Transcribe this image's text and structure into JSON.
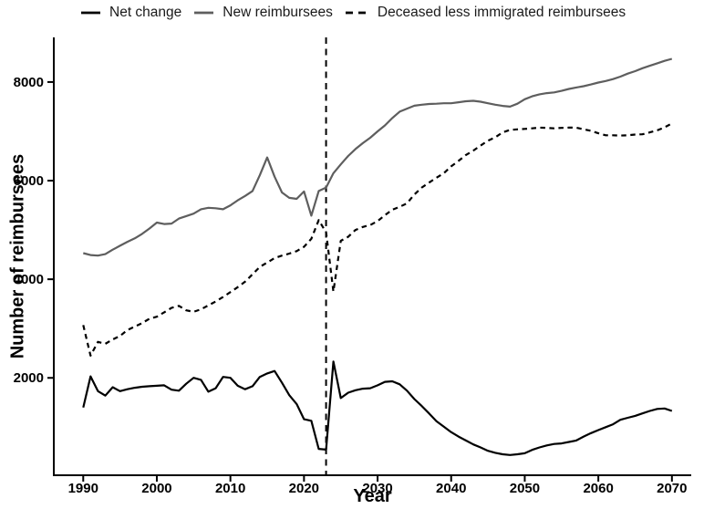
{
  "chart_data": {
    "type": "line",
    "title": "",
    "xlabel": "Year",
    "ylabel": "Number of reimbursees",
    "xlim": [
      1986,
      2072.5
    ],
    "ylim": [
      25,
      8905
    ],
    "x_ticks": [
      1990,
      2000,
      2010,
      2020,
      2030,
      2040,
      2050,
      2060,
      2070
    ],
    "y_ticks": [
      2000,
      4000,
      6000,
      8000
    ],
    "grid": false,
    "legend_position": "top",
    "reference_line": {
      "x": 2023,
      "style": "dashed",
      "color": "#000000"
    },
    "x": [
      1990,
      1991,
      1992,
      1993,
      1994,
      1995,
      1996,
      1997,
      1998,
      1999,
      2000,
      2001,
      2002,
      2003,
      2004,
      2005,
      2006,
      2007,
      2008,
      2009,
      2010,
      2011,
      2012,
      2013,
      2014,
      2015,
      2016,
      2017,
      2018,
      2019,
      2020,
      2021,
      2022,
      2023,
      2024,
      2025,
      2026,
      2027,
      2028,
      2029,
      2030,
      2031,
      2032,
      2033,
      2034,
      2035,
      2036,
      2037,
      2038,
      2039,
      2040,
      2041,
      2042,
      2043,
      2044,
      2045,
      2046,
      2047,
      2048,
      2049,
      2050,
      2051,
      2052,
      2053,
      2054,
      2055,
      2056,
      2057,
      2058,
      2059,
      2060,
      2061,
      2062,
      2063,
      2064,
      2065,
      2066,
      2067,
      2068,
      2069,
      2070
    ],
    "series": [
      {
        "name": "Net change",
        "color": "#000000",
        "line_style": "solid",
        "values": [
          1400,
          2030,
          1730,
          1640,
          1810,
          1730,
          1770,
          1800,
          1820,
          1830,
          1840,
          1850,
          1760,
          1740,
          1880,
          2000,
          1960,
          1720,
          1790,
          2020,
          2000,
          1840,
          1770,
          1830,
          2020,
          2090,
          2140,
          1900,
          1650,
          1470,
          1160,
          1130,
          560,
          545,
          2330,
          1590,
          1700,
          1750,
          1780,
          1790,
          1850,
          1920,
          1930,
          1870,
          1740,
          1570,
          1430,
          1280,
          1120,
          1010,
          900,
          810,
          730,
          650,
          590,
          520,
          480,
          450,
          435,
          450,
          470,
          540,
          590,
          630,
          660,
          670,
          700,
          730,
          810,
          880,
          940,
          1000,
          1060,
          1150,
          1190,
          1230,
          1280,
          1330,
          1370,
          1380,
          1330
        ]
      },
      {
        "name": "New reimbursees",
        "color": "#5e5e5e",
        "line_style": "solid",
        "values": [
          4530,
          4490,
          4480,
          4510,
          4600,
          4680,
          4760,
          4830,
          4920,
          5030,
          5150,
          5120,
          5130,
          5230,
          5280,
          5330,
          5420,
          5450,
          5440,
          5420,
          5500,
          5600,
          5690,
          5790,
          6110,
          6470,
          6080,
          5760,
          5650,
          5630,
          5780,
          5290,
          5790,
          5860,
          6150,
          6330,
          6500,
          6640,
          6760,
          6870,
          7000,
          7120,
          7270,
          7400,
          7460,
          7520,
          7540,
          7555,
          7560,
          7570,
          7570,
          7590,
          7610,
          7620,
          7600,
          7570,
          7540,
          7515,
          7500,
          7560,
          7650,
          7710,
          7750,
          7775,
          7790,
          7820,
          7860,
          7890,
          7915,
          7950,
          7990,
          8020,
          8060,
          8110,
          8170,
          8220,
          8280,
          8330,
          8380,
          8430,
          8470
        ]
      },
      {
        "name": "Deceased less immigrated reimbursees",
        "color": "#000000",
        "line_style": "dashed",
        "values": [
          3070,
          2450,
          2730,
          2690,
          2780,
          2850,
          2970,
          3040,
          3110,
          3200,
          3240,
          3330,
          3420,
          3460,
          3370,
          3340,
          3390,
          3470,
          3550,
          3640,
          3740,
          3840,
          3950,
          4100,
          4250,
          4340,
          4430,
          4480,
          4520,
          4570,
          4660,
          4820,
          5200,
          4950,
          3750,
          4780,
          4860,
          5000,
          5060,
          5100,
          5180,
          5300,
          5410,
          5470,
          5540,
          5720,
          5860,
          5960,
          6060,
          6150,
          6290,
          6400,
          6520,
          6610,
          6710,
          6810,
          6880,
          6980,
          7030,
          7040,
          7050,
          7060,
          7075,
          7070,
          7060,
          7070,
          7075,
          7075,
          7040,
          7010,
          6960,
          6920,
          6920,
          6915,
          6920,
          6935,
          6940,
          6980,
          7020,
          7080,
          7160
        ]
      }
    ]
  }
}
